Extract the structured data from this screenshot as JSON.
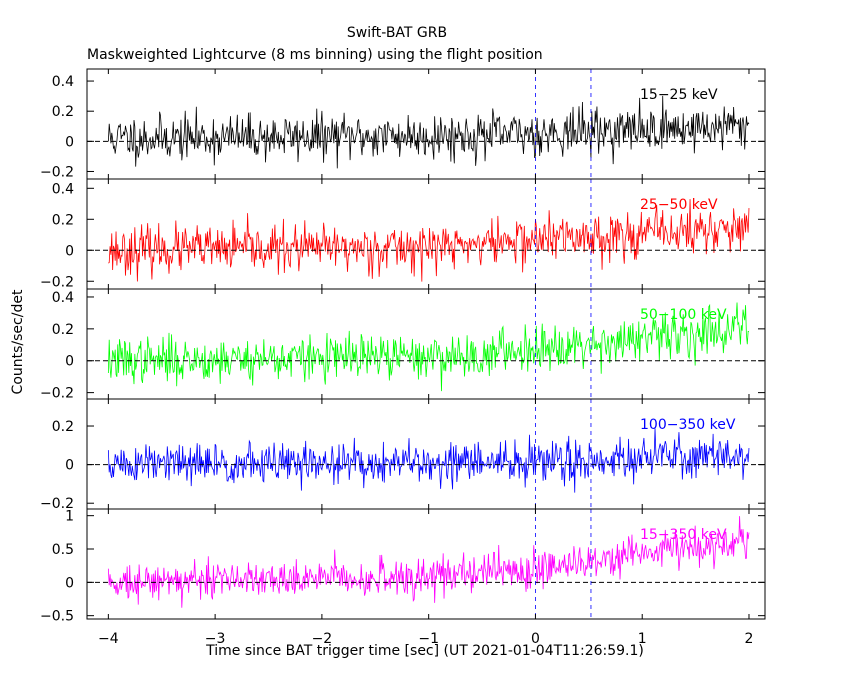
{
  "chart_data": {
    "type": "line",
    "title": "Swift-BAT GRB",
    "subtitle": "Maskweighted Lightcurve (8 ms binning) using the flight position",
    "xlabel": "Time since BAT trigger time [sec] (UT 2021-01-04T11:26:59.1)",
    "ylabel": "Counts/sec/det",
    "xlim": [
      -4.2,
      2.15
    ],
    "x_ticks": [
      {
        "v": -4,
        "label": "−4"
      },
      {
        "v": -3,
        "label": "−3"
      },
      {
        "v": -2,
        "label": "−2"
      },
      {
        "v": -1,
        "label": "−1"
      },
      {
        "v": 0,
        "label": "0"
      },
      {
        "v": 1,
        "label": "1"
      },
      {
        "v": 2,
        "label": "2"
      }
    ],
    "vlines": [
      0,
      0.52
    ],
    "bin_seconds": 0.008,
    "x_range": [
      -4.0,
      2.0
    ],
    "panels": [
      {
        "band": "15−25 keV",
        "color": "#000000",
        "ylim": [
          -0.25,
          0.48
        ],
        "y_ticks": [
          {
            "v": 0.4,
            "label": "0.4"
          },
          {
            "v": 0.2,
            "label": "0.2"
          },
          {
            "v": 0,
            "label": "0"
          },
          {
            "v": -0.2,
            "label": "−0.2"
          }
        ],
        "trend": [
          [
            -4.0,
            0.02
          ],
          [
            -0.5,
            0.04
          ],
          [
            0.5,
            0.07
          ],
          [
            2.0,
            0.1
          ]
        ],
        "noise_sigma": 0.075,
        "seed": 11
      },
      {
        "band": "25−50 keV",
        "color": "#ff0000",
        "ylim": [
          -0.25,
          0.46
        ],
        "y_ticks": [
          {
            "v": 0.4,
            "label": "0.4"
          },
          {
            "v": 0.2,
            "label": "0.2"
          },
          {
            "v": 0,
            "label": "0"
          },
          {
            "v": -0.2,
            "label": "−0.2"
          }
        ],
        "trend": [
          [
            -4.0,
            0.0
          ],
          [
            -1.0,
            0.02
          ],
          [
            0.0,
            0.07
          ],
          [
            1.0,
            0.11
          ],
          [
            2.0,
            0.14
          ]
        ],
        "noise_sigma": 0.075,
        "seed": 23
      },
      {
        "band": "50−100 keV",
        "color": "#00ff00",
        "ylim": [
          -0.24,
          0.45
        ],
        "y_ticks": [
          {
            "v": 0.4,
            "label": "0.4"
          },
          {
            "v": 0.2,
            "label": "0.2"
          },
          {
            "v": 0,
            "label": "0"
          },
          {
            "v": -0.2,
            "label": "−0.2"
          }
        ],
        "trend": [
          [
            -4.0,
            0.0
          ],
          [
            -0.5,
            0.03
          ],
          [
            0.0,
            0.09
          ],
          [
            1.0,
            0.13
          ],
          [
            2.0,
            0.22
          ]
        ],
        "noise_sigma": 0.07,
        "seed": 37
      },
      {
        "band": "100−350 keV",
        "color": "#0000ff",
        "ylim": [
          -0.23,
          0.34
        ],
        "y_ticks": [
          {
            "v": 0.2,
            "label": "0.2"
          },
          {
            "v": 0,
            "label": "0"
          },
          {
            "v": -0.2,
            "label": "−0.2"
          }
        ],
        "trend": [
          [
            -4.0,
            0.0
          ],
          [
            0.0,
            0.01
          ],
          [
            1.0,
            0.04
          ],
          [
            2.0,
            0.05
          ]
        ],
        "noise_sigma": 0.055,
        "seed": 51
      },
      {
        "band": "15−350 keV",
        "color": "#ff00ff",
        "ylim": [
          -0.55,
          1.1
        ],
        "y_ticks": [
          {
            "v": 1,
            "label": "1"
          },
          {
            "v": 0.5,
            "label": "0.5"
          },
          {
            "v": 0,
            "label": "0"
          },
          {
            "v": -0.5,
            "label": "−0.5"
          }
        ],
        "trend": [
          [
            -4.0,
            0.02
          ],
          [
            -1.0,
            0.08
          ],
          [
            0.0,
            0.22
          ],
          [
            1.0,
            0.45
          ],
          [
            1.5,
            0.5
          ],
          [
            2.0,
            0.65
          ]
        ],
        "noise_sigma": 0.14,
        "seed": 73
      }
    ]
  }
}
